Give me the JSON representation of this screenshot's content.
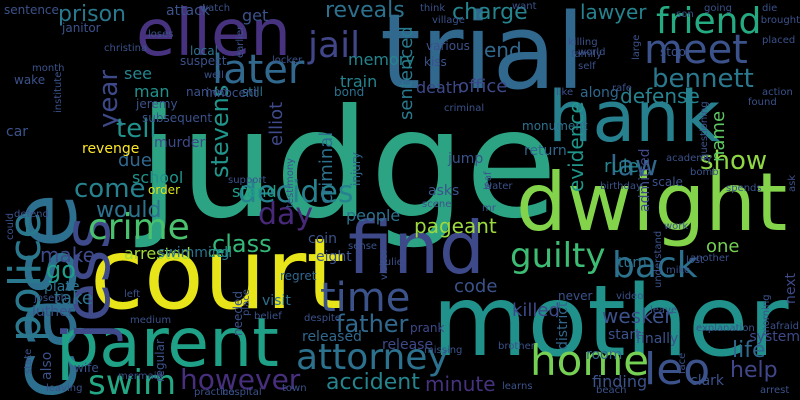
{
  "words": [
    {
      "text": "judge",
      "color": "#2ca484"
    },
    {
      "text": "trial",
      "color": "#31688e"
    },
    {
      "text": "court",
      "color": "#e7e419"
    },
    {
      "text": "mother",
      "color": "#21918c"
    },
    {
      "text": "case",
      "color": "#2d6f8e"
    },
    {
      "text": "dwight",
      "color": "#84d44b"
    },
    {
      "text": "find",
      "color": "#3e4989"
    },
    {
      "text": "hank",
      "color": "#27808e"
    },
    {
      "text": "parent",
      "color": "#1fa187"
    },
    {
      "text": "ellen",
      "color": "#46327e"
    },
    {
      "text": "jess",
      "color": "#3e4a89"
    },
    {
      "text": "police",
      "color": "#2a788e"
    },
    {
      "text": "meet",
      "color": "#3b528b"
    },
    {
      "text": "leo",
      "color": "#3b528b"
    },
    {
      "text": "friend",
      "color": "#25ab82"
    },
    {
      "text": "crime",
      "color": "#4ac16d"
    },
    {
      "text": "later",
      "color": "#31688e"
    },
    {
      "text": "home",
      "color": "#75d054"
    },
    {
      "text": "attorney",
      "color": "#2c718e"
    },
    {
      "text": "time",
      "color": "#3b528b"
    },
    {
      "text": "guilty",
      "color": "#3dbc74"
    },
    {
      "text": "back",
      "color": "#2c728e"
    },
    {
      "text": "bennett",
      "color": "#2a788e"
    },
    {
      "text": "decides",
      "color": "#26828e"
    },
    {
      "text": "stevens",
      "color": "#1f958b"
    },
    {
      "text": "swim",
      "color": "#22a884"
    },
    {
      "text": "however",
      "color": "#472f7d"
    },
    {
      "text": "jail",
      "color": "#404688"
    },
    {
      "text": "day",
      "color": "#482878"
    },
    {
      "text": "year",
      "color": "#3e4989"
    },
    {
      "text": "law",
      "color": "#31688e"
    },
    {
      "text": "show",
      "color": "#8fd744"
    },
    {
      "text": "class",
      "color": "#35b779"
    },
    {
      "text": "father",
      "color": "#31688e"
    },
    {
      "text": "accident",
      "color": "#25848e"
    },
    {
      "text": "come",
      "color": "#26828e"
    },
    {
      "text": "would",
      "color": "#2c728e"
    },
    {
      "text": "tell",
      "color": "#21918c"
    },
    {
      "text": "go",
      "color": "#1f9e89"
    },
    {
      "text": "prison",
      "color": "#2a788e"
    },
    {
      "text": "lawyer",
      "color": "#26828e"
    },
    {
      "text": "charge",
      "color": "#25848e"
    },
    {
      "text": "reveals",
      "color": "#2c728e"
    },
    {
      "text": "defense",
      "color": "#26828e"
    },
    {
      "text": "life",
      "color": "#31688e"
    },
    {
      "text": "help",
      "color": "#404688"
    },
    {
      "text": "pageant",
      "color": "#9bd93c"
    },
    {
      "text": "make",
      "color": "#3e4a89"
    },
    {
      "text": "take",
      "color": "#2c728e"
    },
    {
      "text": "minute",
      "color": "#46327e"
    },
    {
      "text": "evidence",
      "color": "#1f968b"
    },
    {
      "text": "sentenced",
      "color": "#297a8e"
    },
    {
      "text": "criminal",
      "color": "#2c718e"
    },
    {
      "text": "elliot",
      "color": "#3e4989"
    },
    {
      "text": "office",
      "color": "#3e4989"
    },
    {
      "text": "death",
      "color": "#3e4989"
    },
    {
      "text": "killed",
      "color": "#3e4989"
    },
    {
      "text": "code",
      "color": "#3b528b"
    },
    {
      "text": "wesker",
      "color": "#3b528b"
    },
    {
      "text": "one",
      "color": "#75d054"
    },
    {
      "text": "name",
      "color": "#5ec962"
    },
    {
      "text": "stand",
      "color": "#1f9e89"
    },
    {
      "text": "rule",
      "color": "#25848e"
    },
    {
      "text": "due",
      "color": "#31688e"
    },
    {
      "text": "school",
      "color": "#21918c"
    },
    {
      "text": "man",
      "color": "#21918c"
    },
    {
      "text": "see",
      "color": "#25848e"
    },
    {
      "text": "memory",
      "color": "#25848e"
    },
    {
      "text": "train",
      "color": "#25848e"
    },
    {
      "text": "end",
      "color": "#31688e"
    },
    {
      "text": "get",
      "color": "#3b528b"
    },
    {
      "text": "arrested",
      "color": "#a0da39"
    },
    {
      "text": "swimming",
      "color": "#2c728e"
    },
    {
      "text": "people",
      "color": "#2c728e"
    },
    {
      "text": "cell",
      "color": "#1f9e89"
    },
    {
      "text": "visit",
      "color": "#2c728e"
    },
    {
      "text": "regret",
      "color": "#31688e"
    },
    {
      "text": "prank",
      "color": "#3e4989"
    },
    {
      "text": "release",
      "color": "#3e4989"
    },
    {
      "text": "released",
      "color": "#31688e"
    },
    {
      "text": "eight",
      "color": "#3b528b"
    },
    {
      "text": "coin",
      "color": "#3b528b"
    },
    {
      "text": "also",
      "color": "#3b528b"
    },
    {
      "text": "luther",
      "color": "#3b528b"
    },
    {
      "text": "plate",
      "color": "#2c728e"
    },
    {
      "text": "car",
      "color": "#3b528b"
    },
    {
      "text": "revenge",
      "color": "#fde725"
    },
    {
      "text": "order",
      "color": "#dde318"
    },
    {
      "text": "asks",
      "color": "#3b528b"
    },
    {
      "text": "jump",
      "color": "#3b528b"
    },
    {
      "text": "return",
      "color": "#31688e"
    },
    {
      "text": "injury",
      "color": "#31688e"
    },
    {
      "text": "start",
      "color": "#3b528b"
    },
    {
      "text": "finally",
      "color": "#3b528b"
    },
    {
      "text": "turn",
      "color": "#2c728e"
    },
    {
      "text": "district",
      "color": "#31688e"
    },
    {
      "text": "room",
      "color": "#31688e"
    },
    {
      "text": "finding",
      "color": "#3b528b"
    },
    {
      "text": "clark",
      "color": "#3b528b"
    },
    {
      "text": "system",
      "color": "#3e4989"
    },
    {
      "text": "murder",
      "color": "#3e4989"
    },
    {
      "text": "along",
      "color": "#31688e"
    },
    {
      "text": "never",
      "color": "#3b528b"
    },
    {
      "text": "admitted",
      "color": "#3e4989"
    },
    {
      "text": "scale",
      "color": "#3b528b"
    },
    {
      "text": "next",
      "color": "#3e4989"
    },
    {
      "text": "sentence",
      "color": "#3b528b"
    },
    {
      "text": "attack",
      "color": "#3b528b"
    },
    {
      "text": "local",
      "color": "#2c728e"
    },
    {
      "text": "still",
      "color": "#2c728e"
    },
    {
      "text": "bond",
      "color": "#2c728e"
    },
    {
      "text": "monument",
      "color": "#2c728e"
    },
    {
      "text": "month",
      "color": "#3b528b"
    },
    {
      "text": "wake",
      "color": "#3b528b"
    },
    {
      "text": "institute",
      "color": "#3b528b"
    },
    {
      "text": "christina",
      "color": "#3b528b"
    },
    {
      "text": "janitor",
      "color": "#3b528b"
    },
    {
      "text": "jeremy",
      "color": "#3b528b"
    },
    {
      "text": "subsequent",
      "color": "#3b528b"
    },
    {
      "text": "suspect",
      "color": "#3b528b"
    },
    {
      "text": "well",
      "color": "#3b528b"
    },
    {
      "text": "innocent",
      "color": "#3b528b"
    },
    {
      "text": "named",
      "color": "#3b528b"
    },
    {
      "text": "locker",
      "color": "#3b528b"
    },
    {
      "text": "earlier",
      "color": "#3b528b"
    },
    {
      "text": "kiss",
      "color": "#3b528b"
    },
    {
      "text": "various",
      "color": "#3b528b"
    },
    {
      "text": "criminal",
      "color": "#3b528b"
    },
    {
      "text": "village",
      "color": "#3b528b"
    },
    {
      "text": "want",
      "color": "#3b528b"
    },
    {
      "text": "killing",
      "color": "#3b528b"
    },
    {
      "text": "family",
      "color": "#3b528b"
    },
    {
      "text": "world",
      "color": "#3b528b"
    },
    {
      "text": "self",
      "color": "#3b528b"
    },
    {
      "text": "like",
      "color": "#3b528b"
    },
    {
      "text": "rafe",
      "color": "#3b528b"
    },
    {
      "text": "stop",
      "color": "#3b528b"
    },
    {
      "text": "son",
      "color": "#3b528b"
    },
    {
      "text": "large",
      "color": "#3b528b"
    },
    {
      "text": "die",
      "color": "#3b528b"
    },
    {
      "text": "placed",
      "color": "#3b528b"
    },
    {
      "text": "brought",
      "color": "#3b528b"
    },
    {
      "text": "going",
      "color": "#3b528b"
    },
    {
      "text": "found",
      "color": "#3b528b"
    },
    {
      "text": "action",
      "color": "#3b528b"
    },
    {
      "text": "questioning",
      "color": "#3b528b"
    },
    {
      "text": "spends",
      "color": "#3b528b"
    },
    {
      "text": "ask",
      "color": "#3b528b"
    },
    {
      "text": "bomb",
      "color": "#3b528b"
    },
    {
      "text": "academy",
      "color": "#3b528b"
    },
    {
      "text": "birthday",
      "color": "#3b528b"
    },
    {
      "text": "work",
      "color": "#3b528b"
    },
    {
      "text": "another",
      "color": "#3b528b"
    },
    {
      "text": "mike",
      "color": "#3b528b"
    },
    {
      "text": "lost",
      "color": "#3b528b"
    },
    {
      "text": "understand",
      "color": "#3b528b"
    },
    {
      "text": "leave",
      "color": "#3b528b"
    },
    {
      "text": "video",
      "color": "#3b528b"
    },
    {
      "text": "explanation",
      "color": "#3b528b"
    },
    {
      "text": "morning",
      "color": "#3b528b"
    },
    {
      "text": "afraid",
      "color": "#3b528b"
    },
    {
      "text": "arrest",
      "color": "#3b528b"
    },
    {
      "text": "face",
      "color": "#3b528b"
    },
    {
      "text": "beach",
      "color": "#3b528b"
    },
    {
      "text": "learns",
      "color": "#3b528b"
    },
    {
      "text": "missing",
      "color": "#3b528b"
    },
    {
      "text": "brother",
      "color": "#3b528b"
    },
    {
      "text": "julie",
      "color": "#3b528b"
    },
    {
      "text": "visitor",
      "color": "#3b528b"
    },
    {
      "text": "mr",
      "color": "#3b528b"
    },
    {
      "text": "water",
      "color": "#3b528b"
    },
    {
      "text": "scene",
      "color": "#3b528b"
    },
    {
      "text": "sense",
      "color": "#3b528b"
    },
    {
      "text": "despite",
      "color": "#3b528b"
    },
    {
      "text": "belief",
      "color": "#3b528b"
    },
    {
      "text": "needed",
      "color": "#3b528b"
    },
    {
      "text": "place",
      "color": "#3b528b"
    },
    {
      "text": "town",
      "color": "#3b528b"
    },
    {
      "text": "hospital",
      "color": "#3b528b"
    },
    {
      "text": "practice",
      "color": "#3b528b"
    },
    {
      "text": "mermaid",
      "color": "#3b528b"
    },
    {
      "text": "medium",
      "color": "#3b528b"
    },
    {
      "text": "left",
      "color": "#3b528b"
    },
    {
      "text": "regular",
      "color": "#3b528b"
    },
    {
      "text": "wife",
      "color": "#3b528b"
    },
    {
      "text": "leaving",
      "color": "#3b528b"
    },
    {
      "text": "state",
      "color": "#3b528b"
    },
    {
      "text": "joseph",
      "color": "#3b528b"
    },
    {
      "text": "could",
      "color": "#3b528b"
    },
    {
      "text": "support",
      "color": "#3b528b"
    },
    {
      "text": "testimony",
      "color": "#3b528b"
    },
    {
      "text": "loses",
      "color": "#3b528b"
    },
    {
      "text": "watch",
      "color": "#3b528b"
    },
    {
      "text": "think",
      "color": "#3b528b"
    },
    {
      "text": "leaf",
      "color": "#3b528b"
    },
    {
      "text": "defend",
      "color": "#3b528b"
    },
    {
      "text": "boy",
      "color": "#3b528b"
    },
    {
      "text": "thing",
      "color": "#3b528b"
    },
    {
      "text": "unable",
      "color": "#3b528b"
    },
    {
      "text": "b",
      "color": "#3b528b"
    }
  ]
}
